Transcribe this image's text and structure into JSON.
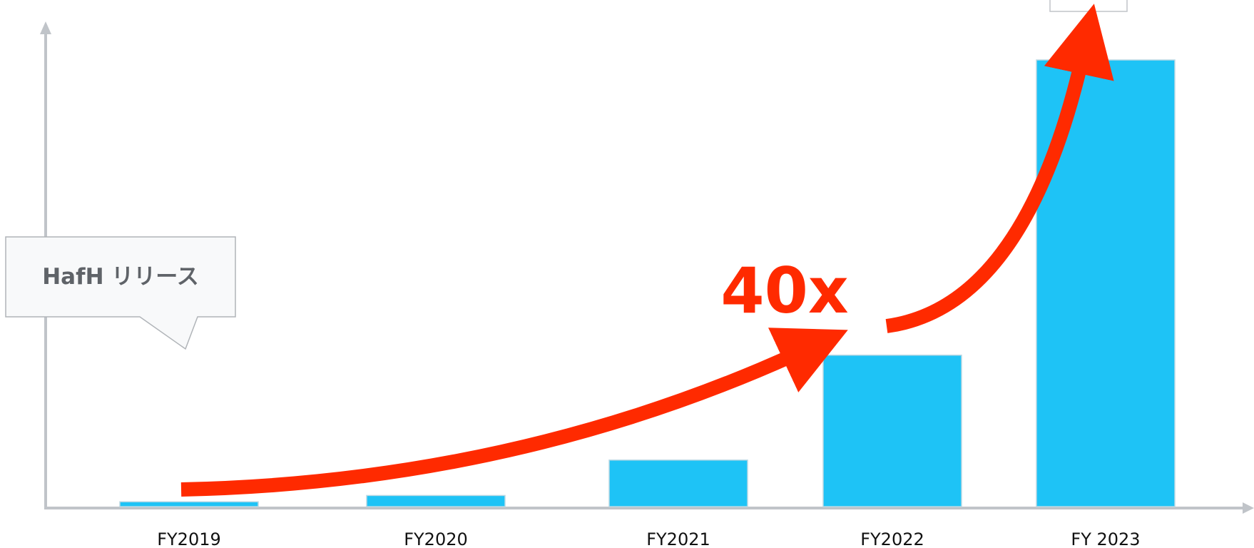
{
  "chart_data": {
    "type": "bar",
    "categories": [
      "FY2019",
      "FY2020",
      "FY2021",
      "FY2022",
      "FY 2023"
    ],
    "values": [
      0.7,
      1.6,
      6.7,
      21.8,
      64.3
    ],
    "ylim": [
      0,
      68
    ],
    "title": "",
    "xlabel": "",
    "ylabel": "",
    "grid": false,
    "annotations": {
      "callout": "HafH リリース",
      "growth_label": "40x"
    }
  },
  "colors": {
    "bar": "#1ec3f6",
    "bar_border": "#b9d8e4",
    "axis": "#c0c4c9",
    "arrow": "#ff2a00",
    "callout_bg": "#f8f9fa",
    "callout_border": "#b0b4b8"
  }
}
